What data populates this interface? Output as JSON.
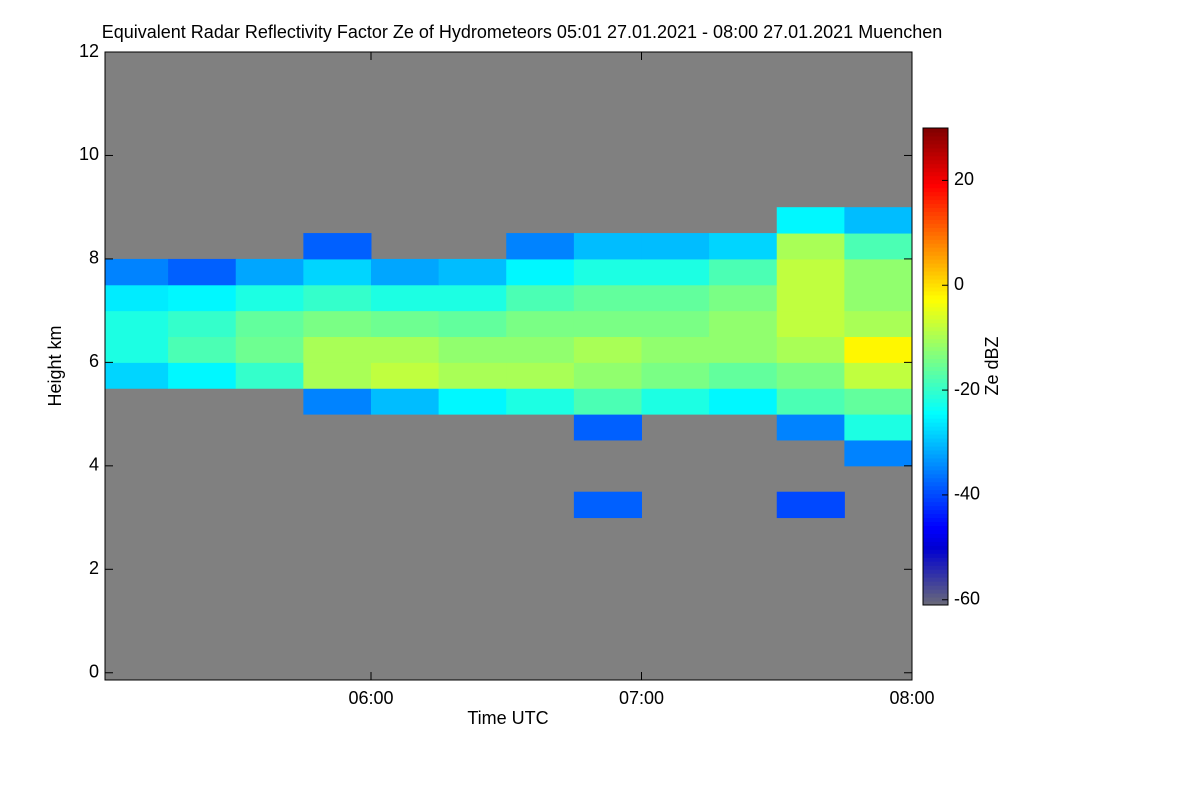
{
  "chart_data": {
    "type": "heatmap",
    "title": "Equivalent Radar Reflectivity Factor Ze of Hydrometeors   05:01 27.01.2021 - 08:00 27.01.2021 Muenchen",
    "x_label": "Time UTC",
    "y_label": "Height km",
    "colorbar_label": "Ze dBZ",
    "colormap": "jet",
    "background": "#808080",
    "x": [
      5,
      5.25,
      5.5,
      5.75,
      6,
      6.25,
      6.5,
      6.75,
      7,
      7.25,
      7.5,
      7.75,
      8
    ],
    "y": [
      3,
      3.5,
      4,
      4.5,
      5,
      5.5,
      6,
      6.5,
      7,
      7.5,
      8,
      8.5,
      9
    ],
    "z": [
      [
        null,
        null,
        null,
        null,
        null,
        null,
        null,
        -38,
        null,
        null,
        -40,
        null
      ],
      [
        null,
        null,
        null,
        null,
        null,
        null,
        null,
        null,
        null,
        null,
        null,
        null
      ],
      [
        null,
        null,
        null,
        null,
        null,
        null,
        null,
        null,
        null,
        null,
        null,
        -35
      ],
      [
        null,
        null,
        null,
        null,
        null,
        null,
        null,
        -38,
        null,
        null,
        -35,
        -22
      ],
      [
        null,
        null,
        null,
        -35,
        -30,
        -25,
        -22,
        -18,
        -22,
        -25,
        -18,
        -16
      ],
      [
        -28,
        -25,
        -20,
        -10,
        -8,
        -10,
        -10,
        -12,
        -14,
        -16,
        -14,
        -8
      ],
      [
        -22,
        -18,
        -15,
        -10,
        -10,
        -12,
        -12,
        -10,
        -12,
        -12,
        -10,
        -2
      ],
      [
        -22,
        -20,
        -16,
        -14,
        -15,
        -16,
        -14,
        -14,
        -14,
        -12,
        -8,
        -10
      ],
      [
        -26,
        -25,
        -22,
        -20,
        -22,
        -22,
        -18,
        -16,
        -16,
        -14,
        -8,
        -12
      ],
      [
        -35,
        -38,
        -32,
        -28,
        -32,
        -30,
        -25,
        -22,
        -22,
        -18,
        -8,
        -12
      ],
      [
        null,
        null,
        null,
        -38,
        null,
        null,
        -35,
        -30,
        -30,
        -28,
        -10,
        -18
      ],
      [
        null,
        null,
        null,
        null,
        null,
        null,
        null,
        null,
        null,
        null,
        -25,
        -30
      ]
    ],
    "xlim": [
      5.0167,
      8
    ],
    "xticks": [
      {
        "value": 6,
        "label": "06:00"
      },
      {
        "value": 7,
        "label": "07:00"
      },
      {
        "value": 8,
        "label": "08:00"
      }
    ],
    "ylim": [
      -0.14,
      12
    ],
    "yticks": [
      0,
      2,
      4,
      6,
      8,
      10,
      12
    ],
    "clim": [
      -61,
      30
    ],
    "cticks": [
      -60,
      -40,
      -20,
      0,
      20
    ]
  }
}
